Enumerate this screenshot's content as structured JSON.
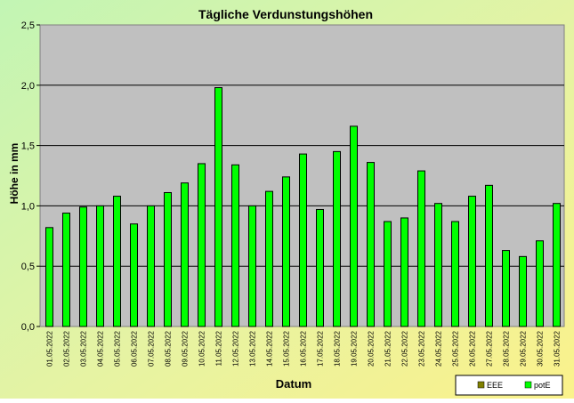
{
  "chart_data": {
    "type": "bar",
    "title": "Tägliche Verdunstungshöhen",
    "xlabel": "Datum",
    "ylabel": "Höhe in mm",
    "ylim": [
      0,
      2.5
    ],
    "yticks": [
      "0,0",
      "0,5",
      "1,0",
      "1,5",
      "2,0",
      "2,5"
    ],
    "grid": true,
    "legend_position": "bottom-right",
    "categories": [
      "01.05.2022",
      "02.05.2022",
      "03.05.2022",
      "04.05.2022",
      "05.05.2022",
      "06.05.2022",
      "07.05.2022",
      "08.05.2022",
      "09.05.2022",
      "10.05.2022",
      "11.05.2022",
      "12.05.2022",
      "13.05.2022",
      "14.05.2022",
      "15.05.2022",
      "16.05.2022",
      "17.05.2022",
      "18.05.2022",
      "19.05.2022",
      "20.05.2022",
      "21.05.2022",
      "22.05.2022",
      "23.05.2022",
      "24.05.2022",
      "25.05.2022",
      "26.05.2022",
      "27.05.2022",
      "28.05.2022",
      "29.05.2022",
      "30.05.2022",
      "31.05.2022"
    ],
    "series": [
      {
        "name": "EEE",
        "color": "#808000",
        "values": [
          0,
          0,
          0,
          0,
          0,
          0,
          0,
          0,
          0,
          0,
          0,
          0,
          0,
          0,
          0,
          0,
          0,
          0,
          0,
          0,
          0,
          0,
          0,
          0,
          0,
          0,
          0,
          0,
          0,
          0,
          0
        ]
      },
      {
        "name": "potE",
        "color": "#00ff00",
        "values": [
          0.82,
          0.94,
          0.99,
          1.0,
          1.08,
          0.85,
          1.0,
          1.11,
          1.19,
          1.35,
          1.98,
          1.34,
          1.0,
          1.12,
          1.24,
          1.43,
          0.97,
          1.45,
          1.66,
          1.36,
          0.87,
          0.9,
          1.29,
          1.02,
          0.87,
          1.08,
          1.17,
          0.63,
          0.58,
          0.71,
          1.02
        ]
      }
    ]
  }
}
